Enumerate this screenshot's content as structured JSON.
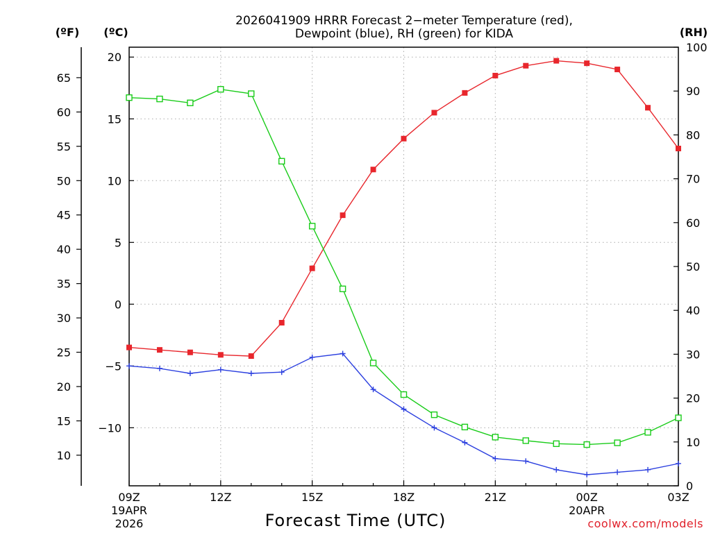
{
  "chart_data": {
    "type": "line",
    "title_line1": "2026041909 HRRR Forecast 2−meter Temperature (red),",
    "title_line2": "Dewpoint (blue), RH (green) for KIDA",
    "unit_f": "(ºF)",
    "unit_c": "(ºC)",
    "unit_rh": "(RH)",
    "xlabel": "Forecast Time (UTC)",
    "credit": "coolwx.com/models",
    "x_hours": [
      9,
      10,
      11,
      12,
      13,
      14,
      15,
      16,
      17,
      18,
      19,
      20,
      21,
      22,
      23,
      24,
      25,
      26,
      27
    ],
    "x_ticks": [
      {
        "hour": 9,
        "label": "09Z",
        "sub1": "19APR",
        "sub2": "2026"
      },
      {
        "hour": 12,
        "label": "12Z",
        "sub1": "",
        "sub2": ""
      },
      {
        "hour": 15,
        "label": "15Z",
        "sub1": "",
        "sub2": ""
      },
      {
        "hour": 18,
        "label": "18Z",
        "sub1": "",
        "sub2": ""
      },
      {
        "hour": 21,
        "label": "21Z",
        "sub1": "",
        "sub2": ""
      },
      {
        "hour": 24,
        "label": "00Z",
        "sub1": "20APR",
        "sub2": ""
      },
      {
        "hour": 27,
        "label": "03Z",
        "sub1": "",
        "sub2": ""
      }
    ],
    "x_range": [
      9,
      27
    ],
    "c_range": [
      -14.7,
      20.8
    ],
    "c_ticks": [
      "20",
      "15",
      "10",
      "5",
      "0",
      "−5",
      "−10"
    ],
    "c_tick_values": [
      20,
      15,
      10,
      5,
      0,
      -5,
      -10
    ],
    "f_ticks": [
      "65",
      "60",
      "55",
      "50",
      "45",
      "40",
      "35",
      "30",
      "25",
      "20",
      "15",
      "10"
    ],
    "f_tick_values": [
      65,
      60,
      55,
      50,
      45,
      40,
      35,
      30,
      25,
      20,
      15,
      10
    ],
    "rh_range": [
      0,
      100
    ],
    "rh_ticks": [
      "100",
      "90",
      "80",
      "70",
      "60",
      "50",
      "40",
      "30",
      "20",
      "10",
      "0"
    ],
    "rh_tick_values": [
      100,
      90,
      80,
      70,
      60,
      50,
      40,
      30,
      20,
      10,
      0
    ],
    "series": [
      {
        "name": "Temperature",
        "axis": "c",
        "color": "#e8262c",
        "marker": "filled-square",
        "values": [
          -3.5,
          -3.7,
          -3.9,
          -4.1,
          -4.2,
          -1.5,
          2.9,
          7.2,
          10.9,
          13.4,
          15.5,
          17.1,
          18.5,
          19.3,
          19.7,
          19.5,
          19.0,
          15.9,
          12.6
        ]
      },
      {
        "name": "Dewpoint",
        "axis": "c",
        "color": "#2b3fdf",
        "marker": "plus",
        "values": [
          -5.0,
          -5.2,
          -5.6,
          -5.3,
          -5.6,
          -5.5,
          -4.3,
          -4.0,
          -6.9,
          -8.5,
          -10.0,
          -11.2,
          -12.5,
          -12.7,
          -13.4,
          -13.8,
          -13.6,
          -13.4,
          -12.9
        ]
      },
      {
        "name": "RH",
        "axis": "rh",
        "color": "#19cc19",
        "marker": "open-square",
        "values": [
          88.5,
          88.2,
          87.3,
          90.4,
          89.4,
          74.0,
          59.2,
          44.9,
          28.0,
          20.8,
          16.2,
          13.4,
          11.1,
          10.3,
          9.6,
          9.4,
          9.8,
          12.2,
          15.5
        ]
      }
    ]
  }
}
